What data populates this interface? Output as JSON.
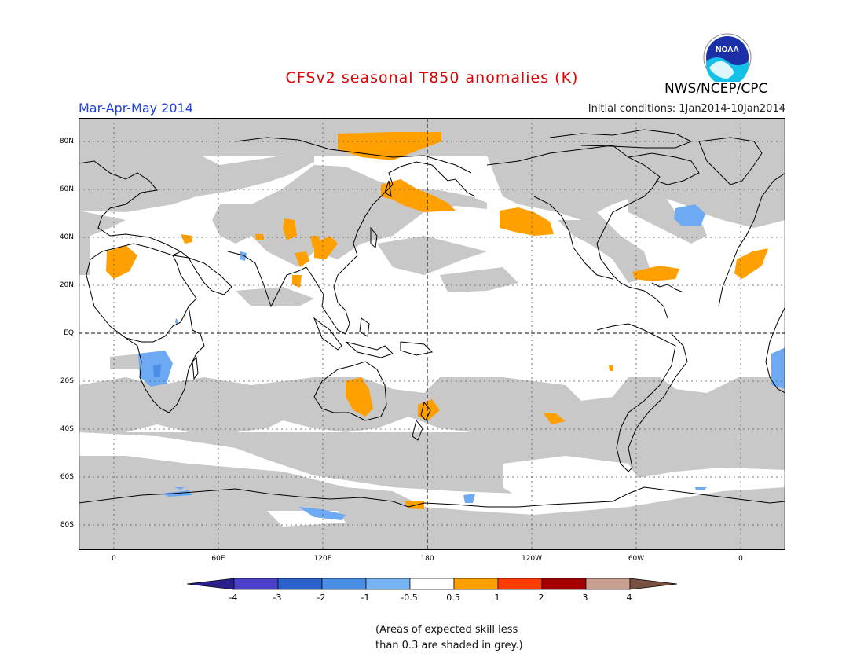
{
  "header": {
    "title": "CFSv2 seasonal T850 anomalies (K)",
    "season": "Mar-Apr-May 2014",
    "initial_conditions": "Initial conditions: 1Jan2014-10Jan2014",
    "agency": "NWS/NCEP/CPC",
    "logo_text": "NOAA"
  },
  "map": {
    "lat_labels": [
      "80N",
      "60N",
      "40N",
      "20N",
      "EQ",
      "20S",
      "40S",
      "60S",
      "80S"
    ],
    "lon_labels": [
      "0",
      "60E",
      "120E",
      "180",
      "120W",
      "60W",
      "0"
    ],
    "colors": {
      "grey_low_skill": "#c8c8c8",
      "orange": "#ff9f00",
      "light_blue": "#6eaaf4",
      "mid_blue": "#4a8ee6"
    }
  },
  "colorbar": {
    "labels": [
      "-4",
      "-3",
      "-2",
      "-1",
      "-0.5",
      "0.5",
      "1",
      "2",
      "3",
      "4"
    ],
    "colors": [
      "#2a1f8c",
      "#4a41c8",
      "#2b62cc",
      "#4a8ee6",
      "#76b4f2",
      "#ffffff",
      "#ff9f00",
      "#ff3c00",
      "#a50000",
      "#c8a091",
      "#7a5040"
    ]
  },
  "footnote": {
    "line1": "(Areas of expected skill less",
    "line2": "than 0.3 are shaded in grey.)"
  }
}
